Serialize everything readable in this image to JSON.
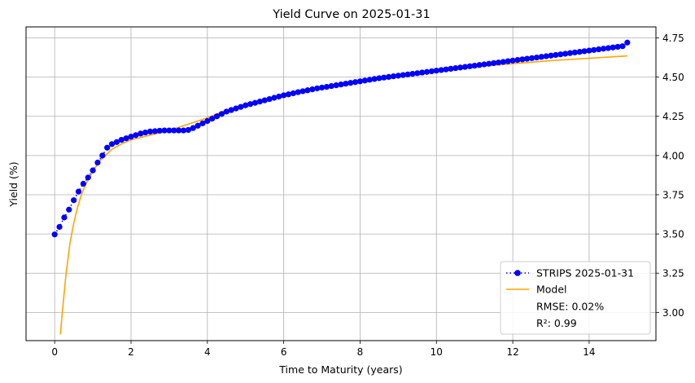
{
  "chart_data": {
    "type": "line",
    "title": "Yield Curve on 2025-01-31",
    "xlabel": "Time to Maturity (years)",
    "ylabel": "Yield (%)",
    "xlim": [
      -0.75,
      15.75
    ],
    "ylim": [
      2.82,
      4.82
    ],
    "x_ticks": [
      0,
      2,
      4,
      6,
      8,
      10,
      12,
      14
    ],
    "y_ticks": [
      3.0,
      3.25,
      3.5,
      3.75,
      4.0,
      4.25,
      4.5,
      4.75
    ],
    "y_tick_labels": [
      "3.00",
      "3.25",
      "3.50",
      "3.75",
      "4.00",
      "4.25",
      "4.50",
      "4.75"
    ],
    "y_axis_side": "right",
    "grid": true,
    "legend_placement": "lower-right",
    "series": [
      {
        "name": "STRIPS 2025-01-31",
        "style": "dotted-line-with-circle-markers",
        "color": "#0000ff",
        "x": [
          0.0,
          0.125,
          0.25,
          0.375,
          0.5,
          0.625,
          0.75,
          0.875,
          1.0,
          1.125,
          1.25,
          1.375,
          1.5,
          1.625,
          1.75,
          1.875,
          2.0,
          2.125,
          2.25,
          2.375,
          2.5,
          2.625,
          2.75,
          2.875,
          3.0,
          3.125,
          3.25,
          3.375,
          3.5,
          3.625,
          3.75,
          3.875,
          4.0,
          4.125,
          4.25,
          4.375,
          4.5,
          4.625,
          4.75,
          4.875,
          5.0,
          5.125,
          5.25,
          5.375,
          5.5,
          5.625,
          5.75,
          5.875,
          6.0,
          6.125,
          6.25,
          6.375,
          6.5,
          6.625,
          6.75,
          6.875,
          7.0,
          7.125,
          7.25,
          7.375,
          7.5,
          7.625,
          7.75,
          7.875,
          8.0,
          8.125,
          8.25,
          8.375,
          8.5,
          8.625,
          8.75,
          8.875,
          9.0,
          9.125,
          9.25,
          9.375,
          9.5,
          9.625,
          9.75,
          9.875,
          10.0,
          10.125,
          10.25,
          10.375,
          10.5,
          10.625,
          10.75,
          10.875,
          11.0,
          11.125,
          11.25,
          11.375,
          11.5,
          11.625,
          11.75,
          11.875,
          12.0,
          12.125,
          12.25,
          12.375,
          12.5,
          12.625,
          12.75,
          12.875,
          13.0,
          13.125,
          13.25,
          13.375,
          13.5,
          13.625,
          13.75,
          13.875,
          14.0,
          14.125,
          14.25,
          14.375,
          14.5,
          14.625,
          14.75,
          14.875,
          15.0
        ],
        "values": [
          3.497,
          3.545,
          3.605,
          3.655,
          3.715,
          3.77,
          3.82,
          3.86,
          3.905,
          3.955,
          4.0,
          4.05,
          4.073,
          4.086,
          4.1,
          4.11,
          4.12,
          4.13,
          4.14,
          4.147,
          4.153,
          4.155,
          4.158,
          4.16,
          4.16,
          4.16,
          4.16,
          4.16,
          4.163,
          4.175,
          4.19,
          4.205,
          4.22,
          4.235,
          4.25,
          4.265,
          4.28,
          4.29,
          4.3,
          4.31,
          4.32,
          4.328,
          4.336,
          4.344,
          4.352,
          4.36,
          4.368,
          4.376,
          4.384,
          4.39,
          4.397,
          4.404,
          4.41,
          4.416,
          4.422,
          4.428,
          4.433,
          4.438,
          4.443,
          4.448,
          4.453,
          4.458,
          4.463,
          4.468,
          4.473,
          4.478,
          4.483,
          4.488,
          4.493,
          4.497,
          4.501,
          4.505,
          4.509,
          4.513,
          4.517,
          4.521,
          4.525,
          4.529,
          4.533,
          4.537,
          4.541,
          4.545,
          4.549,
          4.553,
          4.557,
          4.561,
          4.565,
          4.569,
          4.573,
          4.577,
          4.581,
          4.585,
          4.589,
          4.593,
          4.597,
          4.601,
          4.605,
          4.609,
          4.613,
          4.617,
          4.621,
          4.625,
          4.629,
          4.633,
          4.637,
          4.641,
          4.645,
          4.649,
          4.653,
          4.657,
          4.661,
          4.665,
          4.669,
          4.673,
          4.677,
          4.681,
          4.685,
          4.689,
          4.693,
          4.697,
          4.72
        ]
      },
      {
        "name": "Model",
        "style": "solid-line",
        "color": "#ffa500",
        "x": [
          0.15,
          0.2,
          0.3,
          0.4,
          0.5,
          0.6,
          0.7,
          0.8,
          1.0,
          1.2,
          1.5,
          1.8,
          2.0,
          2.5,
          3.0,
          3.5,
          4.0,
          4.5,
          5.0,
          6.0,
          7.0,
          8.0,
          9.0,
          10.0,
          11.0,
          12.0,
          13.0,
          14.0,
          15.0
        ],
        "values": [
          2.86,
          3.0,
          3.25,
          3.44,
          3.57,
          3.67,
          3.75,
          3.81,
          3.9,
          3.97,
          4.04,
          4.08,
          4.1,
          4.13,
          4.16,
          4.2,
          4.24,
          4.29,
          4.32,
          4.38,
          4.43,
          4.475,
          4.51,
          4.54,
          4.565,
          4.585,
          4.605,
          4.62,
          4.635
        ]
      }
    ],
    "legend_extra": [
      "RMSE: 0.02%",
      "R²: 0.99"
    ],
    "colors": {
      "grid": "#b0b0b0",
      "axis": "#000000"
    }
  }
}
